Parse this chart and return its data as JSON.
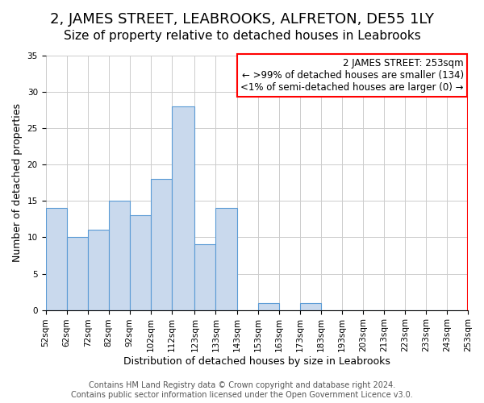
{
  "title": "2, JAMES STREET, LEABROOKS, ALFRETON, DE55 1LY",
  "subtitle": "Size of property relative to detached houses in Leabrooks",
  "xlabel": "Distribution of detached houses by size in Leabrooks",
  "ylabel": "Number of detached properties",
  "bar_values": [
    14,
    10,
    11,
    15,
    13,
    18,
    28,
    9,
    14,
    0,
    1,
    0,
    1,
    0,
    0,
    0,
    0,
    0,
    0,
    0
  ],
  "bin_edges": [
    52,
    62,
    72,
    82,
    92,
    102,
    112,
    123,
    133,
    143,
    153,
    163,
    173,
    183,
    193,
    203,
    213,
    223,
    233,
    243,
    253
  ],
  "bin_labels": [
    "52sqm",
    "62sqm",
    "72sqm",
    "82sqm",
    "92sqm",
    "102sqm",
    "112sqm",
    "123sqm",
    "133sqm",
    "143sqm",
    "153sqm",
    "163sqm",
    "173sqm",
    "183sqm",
    "193sqm",
    "203sqm",
    "213sqm",
    "223sqm",
    "233sqm",
    "243sqm",
    "253sqm"
  ],
  "bar_color": "#c9d9ed",
  "bar_edge_color": "#5b9bd5",
  "grid_color": "#cccccc",
  "annotation_text": "2 JAMES STREET: 253sqm\n← >99% of detached houses are smaller (134)\n<1% of semi-detached houses are larger (0) →",
  "annotation_box_color": "#ffffff",
  "annotation_box_edge": "#ff0000",
  "vline_color": "#ff0000",
  "ylim": [
    0,
    35
  ],
  "yticks": [
    0,
    5,
    10,
    15,
    20,
    25,
    30,
    35
  ],
  "footer_line1": "Contains HM Land Registry data © Crown copyright and database right 2024.",
  "footer_line2": "Contains public sector information licensed under the Open Government Licence v3.0.",
  "title_fontsize": 13,
  "subtitle_fontsize": 11,
  "axis_label_fontsize": 9,
  "tick_fontsize": 7.5,
  "annotation_fontsize": 8.5,
  "footer_fontsize": 7
}
